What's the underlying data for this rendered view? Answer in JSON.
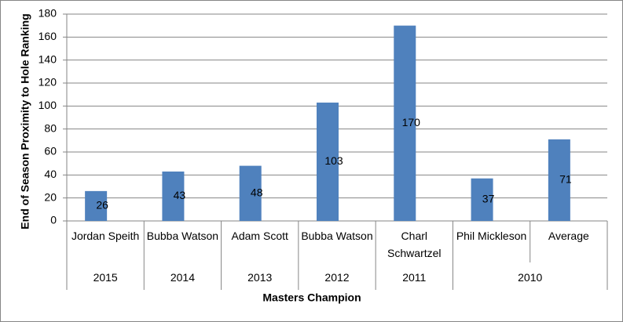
{
  "chart_data": {
    "type": "bar",
    "y_label": "End of Season Proximity to Hole Ranking",
    "x_label": "Masters Champion",
    "categories": [
      "Jordan Speith",
      "Bubba Watson",
      "Adam Scott",
      "Bubba Watson",
      "Charl Schwartzel",
      "Phil Mickleson",
      "Average"
    ],
    "groups": [
      "2015",
      "2014",
      "2013",
      "2012",
      "2011",
      "2010",
      null
    ],
    "values": [
      26,
      43,
      48,
      103,
      170,
      37,
      71
    ],
    "color": "#4f81bd",
    "ylim": [
      0,
      180
    ],
    "yticks": [
      0,
      20,
      40,
      60,
      80,
      100,
      120,
      140,
      160,
      180
    ],
    "grid": true
  }
}
